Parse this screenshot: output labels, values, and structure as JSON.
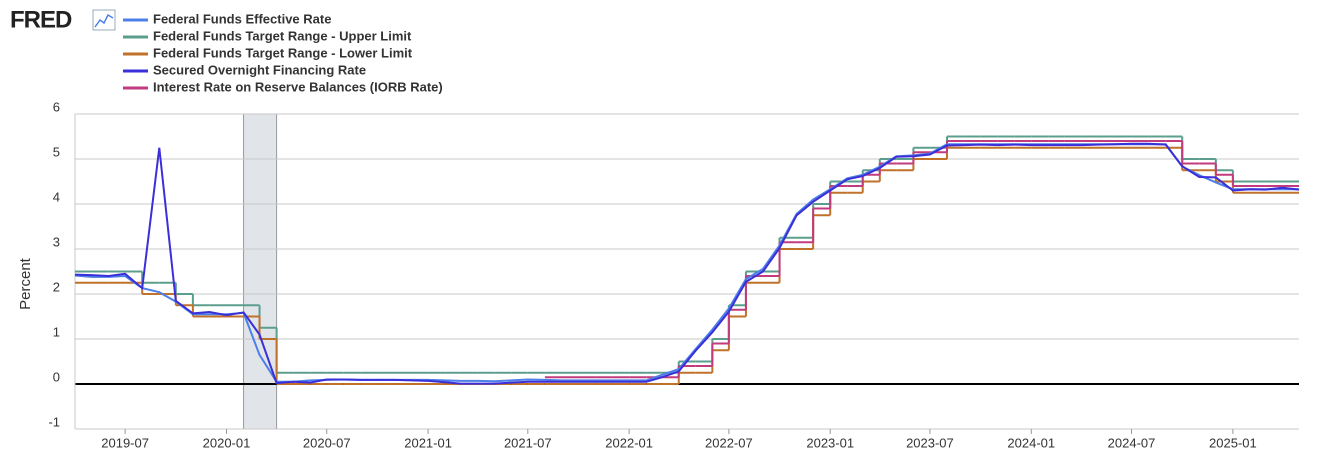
{
  "chart_data": {
    "type": "line",
    "brand": "FRED",
    "y_label": "Percent",
    "x": [
      "2019-04",
      "2019-05",
      "2019-06",
      "2019-07",
      "2019-08",
      "2019-09",
      "2019-10",
      "2019-11",
      "2019-12",
      "2020-01",
      "2020-02",
      "2020-03",
      "2020-04",
      "2020-05",
      "2020-06",
      "2020-07",
      "2020-08",
      "2020-09",
      "2020-10",
      "2020-11",
      "2020-12",
      "2021-01",
      "2021-02",
      "2021-03",
      "2021-04",
      "2021-05",
      "2021-06",
      "2021-07",
      "2021-08",
      "2021-09",
      "2021-10",
      "2021-11",
      "2021-12",
      "2022-01",
      "2022-02",
      "2022-03",
      "2022-04",
      "2022-05",
      "2022-06",
      "2022-07",
      "2022-08",
      "2022-09",
      "2022-10",
      "2022-11",
      "2022-12",
      "2023-01",
      "2023-02",
      "2023-03",
      "2023-04",
      "2023-05",
      "2023-06",
      "2023-07",
      "2023-08",
      "2023-09",
      "2023-10",
      "2023-11",
      "2023-12",
      "2024-01",
      "2024-02",
      "2024-03",
      "2024-04",
      "2024-05",
      "2024-06",
      "2024-07",
      "2024-08",
      "2024-09",
      "2024-10",
      "2024-11",
      "2024-12",
      "2025-01",
      "2025-02",
      "2025-03",
      "2025-04",
      "2025-05"
    ],
    "series": [
      {
        "name": "Federal Funds Effective Rate",
        "color": "#4c7fe8",
        "step": false,
        "values": [
          2.41,
          2.38,
          2.38,
          2.4,
          2.13,
          2.04,
          1.83,
          1.55,
          1.55,
          1.55,
          1.58,
          0.65,
          0.05,
          0.05,
          0.08,
          0.09,
          0.1,
          0.09,
          0.09,
          0.09,
          0.09,
          0.09,
          0.08,
          0.07,
          0.07,
          0.06,
          0.08,
          0.1,
          0.09,
          0.08,
          0.08,
          0.08,
          0.08,
          0.08,
          0.08,
          0.2,
          0.33,
          0.77,
          1.21,
          1.68,
          2.33,
          2.56,
          3.08,
          3.78,
          4.1,
          4.33,
          4.57,
          4.65,
          4.83,
          5.06,
          5.08,
          5.12,
          5.33,
          5.33,
          5.33,
          5.33,
          5.33,
          5.33,
          5.33,
          5.33,
          5.33,
          5.33,
          5.33,
          5.33,
          5.33,
          5.33,
          4.83,
          4.64,
          4.48,
          4.33,
          4.33,
          4.33,
          4.33,
          4.33
        ]
      },
      {
        "name": "Federal Funds Target Range - Upper Limit",
        "color": "#5b9e8e",
        "step": true,
        "values": [
          2.5,
          2.5,
          2.5,
          2.5,
          2.25,
          2.25,
          2.0,
          1.75,
          1.75,
          1.75,
          1.75,
          1.25,
          0.25,
          0.25,
          0.25,
          0.25,
          0.25,
          0.25,
          0.25,
          0.25,
          0.25,
          0.25,
          0.25,
          0.25,
          0.25,
          0.25,
          0.25,
          0.25,
          0.25,
          0.25,
          0.25,
          0.25,
          0.25,
          0.25,
          0.25,
          0.25,
          0.5,
          0.5,
          1.0,
          1.75,
          2.5,
          2.5,
          3.25,
          3.25,
          4.0,
          4.5,
          4.5,
          4.75,
          5.0,
          5.0,
          5.25,
          5.25,
          5.5,
          5.5,
          5.5,
          5.5,
          5.5,
          5.5,
          5.5,
          5.5,
          5.5,
          5.5,
          5.5,
          5.5,
          5.5,
          5.5,
          5.0,
          5.0,
          4.75,
          4.5,
          4.5,
          4.5,
          4.5,
          4.5
        ]
      },
      {
        "name": "Federal Funds Target Range - Lower Limit",
        "color": "#c0712a",
        "step": true,
        "values": [
          2.25,
          2.25,
          2.25,
          2.25,
          2.0,
          2.0,
          1.75,
          1.5,
          1.5,
          1.5,
          1.5,
          1.0,
          0,
          0,
          0,
          0,
          0,
          0,
          0,
          0,
          0,
          0,
          0,
          0,
          0,
          0,
          0,
          0,
          0,
          0,
          0,
          0,
          0,
          0,
          0,
          0,
          0.25,
          0.25,
          0.75,
          1.5,
          2.25,
          2.25,
          3.0,
          3.0,
          3.75,
          4.25,
          4.25,
          4.5,
          4.75,
          4.75,
          5.0,
          5.0,
          5.25,
          5.25,
          5.25,
          5.25,
          5.25,
          5.25,
          5.25,
          5.25,
          5.25,
          5.25,
          5.25,
          5.25,
          5.25,
          5.25,
          4.75,
          4.75,
          4.5,
          4.25,
          4.25,
          4.25,
          4.25,
          4.25
        ]
      },
      {
        "name": "Secured Overnight Financing Rate",
        "color": "#3a2fd8",
        "step": false,
        "values": [
          2.43,
          2.42,
          2.4,
          2.45,
          2.13,
          5.25,
          1.85,
          1.57,
          1.6,
          1.53,
          1.59,
          1.1,
          0.02,
          0.05,
          0.03,
          0.1,
          0.1,
          0.09,
          0.09,
          0.09,
          0.08,
          0.07,
          0.04,
          0.01,
          0.01,
          0.01,
          0.03,
          0.05,
          0.05,
          0.05,
          0.05,
          0.05,
          0.05,
          0.05,
          0.05,
          0.15,
          0.28,
          0.73,
          1.15,
          1.61,
          2.27,
          2.5,
          3.02,
          3.75,
          4.05,
          4.3,
          4.55,
          4.62,
          4.8,
          5.05,
          5.06,
          5.1,
          5.3,
          5.31,
          5.32,
          5.31,
          5.32,
          5.31,
          5.31,
          5.31,
          5.31,
          5.32,
          5.33,
          5.34,
          5.34,
          5.32,
          4.84,
          4.6,
          4.59,
          4.3,
          4.33,
          4.32,
          4.36,
          4.32
        ]
      },
      {
        "name": "Interest Rate on Reserve Balances (IORB Rate)",
        "color": "#c23b7e",
        "step": true,
        "values": [
          null,
          null,
          null,
          null,
          null,
          null,
          null,
          null,
          null,
          null,
          null,
          null,
          null,
          null,
          null,
          null,
          null,
          null,
          null,
          null,
          null,
          null,
          null,
          null,
          null,
          null,
          null,
          null,
          0.15,
          0.15,
          0.15,
          0.15,
          0.15,
          0.15,
          0.15,
          0.15,
          0.4,
          0.4,
          0.9,
          1.65,
          2.4,
          2.4,
          3.15,
          3.15,
          3.9,
          4.4,
          4.4,
          4.65,
          4.9,
          4.9,
          5.15,
          5.15,
          5.4,
          5.4,
          5.4,
          5.4,
          5.4,
          5.4,
          5.4,
          5.4,
          5.4,
          5.4,
          5.4,
          5.4,
          5.4,
          5.4,
          4.9,
          4.9,
          4.65,
          4.4,
          4.4,
          4.4,
          4.4,
          4.4
        ]
      }
    ],
    "shaded": [
      [
        "2020-02",
        "2020-04"
      ]
    ],
    "xlim": [
      "2019-04",
      "2025-05"
    ],
    "xticks": [
      "2019-07",
      "2020-01",
      "2020-07",
      "2021-01",
      "2021-07",
      "2022-01",
      "2022-07",
      "2023-01",
      "2023-07",
      "2024-01",
      "2024-07",
      "2025-01"
    ],
    "ylim": [
      -1,
      6
    ],
    "yticks": [
      6,
      5,
      4,
      3,
      2,
      1,
      0,
      -1
    ],
    "grid": true
  }
}
